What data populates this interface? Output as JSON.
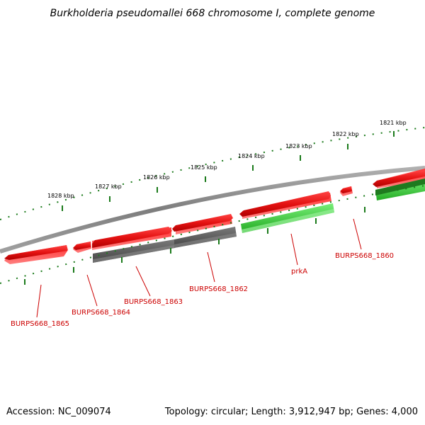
{
  "title": "Burkholderia pseudomallei 668 chromosome I, complete genome",
  "footer": {
    "accession": "Accession: NC_009074",
    "summary": "Topology: circular; Length: 3,912,947 bp; Genes: 4,000"
  },
  "colors": {
    "background": "#ffffff",
    "backbone": "#8a8a8a",
    "forward_gene": "#e41212",
    "gene_cds_gray": "#666666",
    "gene_cds_green": "#33cc33",
    "tick": "#1a7a1a",
    "label": "#cc0000"
  },
  "ruler_labels": [
    "1821 kbp",
    "1822 kbp",
    "1823 kbp",
    "1824 kbp",
    "1825 kbp",
    "1826 kbp",
    "1827 kbp",
    "1828 kbp"
  ],
  "gene_labels": [
    "BURPS668_1860",
    "prkA",
    "BURPS668_1862",
    "BURPS668_1863",
    "BURPS668_1864",
    "BURPS668_1865"
  ]
}
